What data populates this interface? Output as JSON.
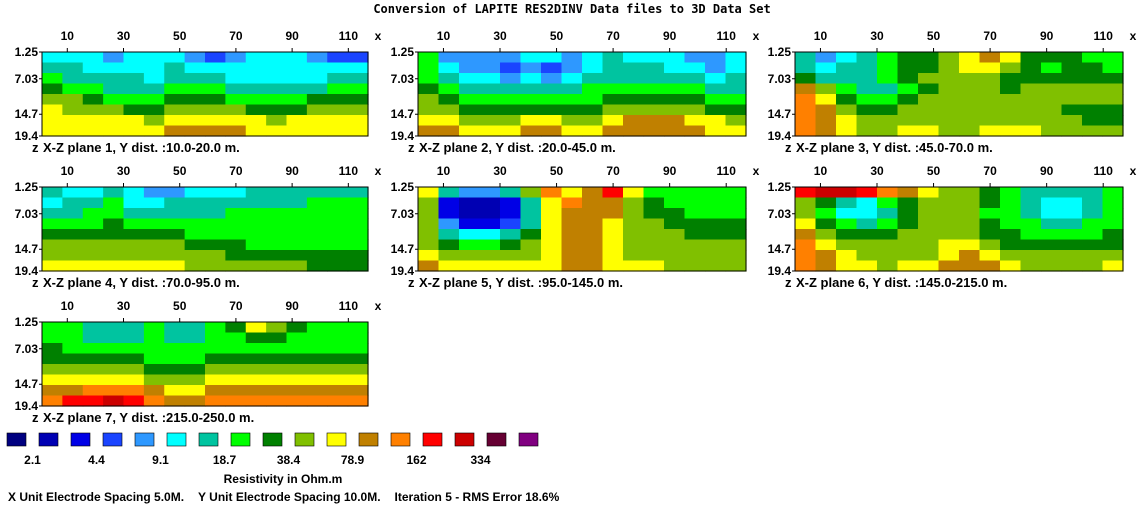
{
  "title": "Conversion of LAPITE RES2DINV Data files to 3D Data Set",
  "chart_data": {
    "type": "heatmap",
    "x_ticks": [
      "10",
      "30",
      "50",
      "70",
      "90",
      "110"
    ],
    "x_tick_values": [
      10,
      30,
      50,
      70,
      90,
      110
    ],
    "x_axis_letter": "x",
    "z_axis_letter": "z",
    "xlim": [
      1,
      117
    ],
    "depth_ticks": [
      "1.25",
      "7.03",
      "14.7",
      "19.4"
    ],
    "depth_tick_values": [
      1.25,
      7.03,
      14.7,
      19.4
    ],
    "zlim": [
      1.25,
      19.4
    ],
    "panels": [
      {
        "caption": "X-Z plane 1, Y dist. :10.0-20.0 m.",
        "grid": [
          [
            5,
            5,
            5,
            4,
            5,
            5,
            5,
            4,
            3,
            4,
            5,
            5,
            5,
            4,
            3,
            3
          ],
          [
            6,
            6,
            5,
            5,
            5,
            5,
            6,
            5,
            5,
            5,
            5,
            5,
            5,
            5,
            5,
            5
          ],
          [
            7,
            6,
            6,
            6,
            6,
            5,
            6,
            6,
            6,
            5,
            5,
            5,
            5,
            5,
            6,
            6
          ],
          [
            8,
            7,
            7,
            6,
            6,
            6,
            7,
            7,
            7,
            6,
            6,
            6,
            6,
            6,
            7,
            7
          ],
          [
            9,
            9,
            8,
            7,
            7,
            7,
            8,
            8,
            8,
            7,
            7,
            7,
            7,
            8,
            8,
            8
          ],
          [
            10,
            9,
            9,
            9,
            8,
            8,
            9,
            9,
            9,
            9,
            8,
            8,
            8,
            9,
            9,
            9
          ],
          [
            10,
            10,
            10,
            10,
            10,
            9,
            10,
            10,
            10,
            10,
            10,
            9,
            10,
            10,
            10,
            10
          ],
          [
            10,
            10,
            10,
            10,
            10,
            10,
            11,
            11,
            11,
            11,
            10,
            10,
            10,
            10,
            10,
            10
          ]
        ]
      },
      {
        "caption": "X-Z plane 2, Y dist. :20.0-45.0 m.",
        "grid": [
          [
            7,
            4,
            4,
            4,
            4,
            5,
            5,
            4,
            5,
            6,
            5,
            5,
            5,
            4,
            4,
            5
          ],
          [
            7,
            5,
            4,
            4,
            3,
            4,
            3,
            4,
            5,
            6,
            6,
            6,
            5,
            5,
            4,
            5
          ],
          [
            7,
            6,
            5,
            5,
            4,
            5,
            4,
            5,
            6,
            6,
            6,
            6,
            6,
            6,
            5,
            6
          ],
          [
            8,
            7,
            6,
            6,
            6,
            6,
            6,
            6,
            7,
            7,
            7,
            7,
            7,
            7,
            6,
            6
          ],
          [
            9,
            8,
            7,
            7,
            7,
            7,
            7,
            7,
            7,
            8,
            8,
            8,
            8,
            8,
            7,
            7
          ],
          [
            9,
            9,
            8,
            8,
            8,
            8,
            8,
            8,
            8,
            9,
            9,
            9,
            9,
            9,
            8,
            8
          ],
          [
            10,
            10,
            9,
            9,
            9,
            10,
            10,
            9,
            9,
            10,
            11,
            11,
            11,
            10,
            10,
            9
          ],
          [
            11,
            11,
            10,
            10,
            10,
            11,
            11,
            10,
            10,
            11,
            11,
            11,
            11,
            11,
            10,
            10
          ]
        ]
      },
      {
        "caption": "X-Z plane 3, Y dist. :45.0-70.0 m.",
        "grid": [
          [
            6,
            4,
            5,
            6,
            7,
            8,
            8,
            9,
            10,
            11,
            10,
            8,
            8,
            8,
            7,
            7
          ],
          [
            6,
            5,
            6,
            6,
            7,
            8,
            8,
            9,
            10,
            10,
            9,
            8,
            7,
            8,
            8,
            7
          ],
          [
            8,
            6,
            6,
            6,
            7,
            8,
            9,
            9,
            9,
            9,
            8,
            8,
            8,
            8,
            8,
            8
          ],
          [
            11,
            9,
            7,
            6,
            6,
            7,
            8,
            9,
            9,
            9,
            8,
            9,
            9,
            9,
            9,
            9
          ],
          [
            12,
            10,
            8,
            7,
            7,
            8,
            9,
            9,
            9,
            9,
            9,
            9,
            9,
            9,
            9,
            9
          ],
          [
            12,
            11,
            9,
            8,
            8,
            9,
            9,
            9,
            9,
            9,
            9,
            9,
            9,
            8,
            8,
            8
          ],
          [
            12,
            11,
            10,
            9,
            9,
            9,
            9,
            9,
            9,
            9,
            9,
            9,
            9,
            9,
            8,
            8
          ],
          [
            12,
            11,
            10,
            9,
            9,
            10,
            10,
            9,
            9,
            10,
            10,
            10,
            9,
            9,
            9,
            9
          ]
        ]
      },
      {
        "caption": "X-Z plane 4, Y dist. :70.0-95.0 m.",
        "grid": [
          [
            6,
            5,
            5,
            6,
            5,
            4,
            4,
            5,
            5,
            5,
            6,
            6,
            6,
            6,
            6,
            6
          ],
          [
            5,
            6,
            6,
            7,
            5,
            5,
            6,
            6,
            6,
            6,
            6,
            6,
            6,
            7,
            7,
            7
          ],
          [
            6,
            6,
            7,
            7,
            6,
            6,
            6,
            6,
            6,
            7,
            7,
            7,
            7,
            7,
            7,
            7
          ],
          [
            7,
            7,
            7,
            8,
            7,
            7,
            7,
            7,
            7,
            7,
            7,
            7,
            7,
            7,
            7,
            7
          ],
          [
            8,
            8,
            8,
            8,
            8,
            8,
            8,
            7,
            7,
            7,
            7,
            7,
            7,
            7,
            7,
            7
          ],
          [
            9,
            9,
            9,
            9,
            9,
            9,
            9,
            8,
            8,
            8,
            7,
            7,
            7,
            7,
            7,
            7
          ],
          [
            9,
            9,
            9,
            9,
            9,
            9,
            9,
            9,
            9,
            8,
            8,
            8,
            8,
            8,
            8,
            8
          ],
          [
            10,
            10,
            10,
            10,
            10,
            10,
            10,
            9,
            9,
            9,
            9,
            9,
            9,
            8,
            8,
            8
          ]
        ]
      },
      {
        "caption": "X-Z plane 5, Y dist. :95.0-145.0 m.",
        "grid": [
          [
            10,
            6,
            4,
            4,
            6,
            9,
            12,
            10,
            11,
            13,
            10,
            7,
            7,
            7,
            7,
            7
          ],
          [
            9,
            2,
            1,
            1,
            2,
            6,
            10,
            12,
            11,
            11,
            9,
            8,
            7,
            7,
            7,
            7
          ],
          [
            9,
            2,
            1,
            1,
            2,
            6,
            10,
            11,
            11,
            11,
            9,
            8,
            8,
            7,
            7,
            7
          ],
          [
            9,
            4,
            2,
            2,
            3,
            6,
            10,
            11,
            11,
            10,
            9,
            9,
            8,
            8,
            8,
            8
          ],
          [
            9,
            6,
            5,
            5,
            6,
            8,
            10,
            11,
            11,
            10,
            9,
            9,
            9,
            8,
            8,
            8
          ],
          [
            9,
            8,
            7,
            7,
            8,
            9,
            10,
            11,
            11,
            10,
            9,
            9,
            9,
            9,
            9,
            9
          ],
          [
            10,
            9,
            9,
            9,
            9,
            9,
            10,
            11,
            11,
            10,
            9,
            9,
            9,
            9,
            9,
            9
          ],
          [
            11,
            10,
            10,
            10,
            10,
            10,
            10,
            11,
            11,
            10,
            10,
            10,
            9,
            9,
            9,
            9
          ]
        ]
      },
      {
        "caption": "X-Z plane 6, Y dist. :145.0-215.0 m.",
        "grid": [
          [
            13,
            14,
            14,
            13,
            12,
            11,
            10,
            9,
            9,
            8,
            7,
            6,
            6,
            6,
            6,
            7
          ],
          [
            9,
            8,
            6,
            5,
            7,
            8,
            9,
            9,
            9,
            8,
            7,
            6,
            5,
            5,
            6,
            7
          ],
          [
            9,
            7,
            5,
            5,
            6,
            8,
            9,
            9,
            9,
            7,
            7,
            6,
            5,
            5,
            6,
            7
          ],
          [
            10,
            8,
            7,
            6,
            7,
            8,
            9,
            9,
            9,
            8,
            7,
            7,
            6,
            6,
            7,
            7
          ],
          [
            11,
            9,
            8,
            8,
            8,
            9,
            9,
            9,
            9,
            8,
            8,
            7,
            7,
            7,
            7,
            8
          ],
          [
            12,
            10,
            9,
            9,
            9,
            9,
            9,
            10,
            10,
            9,
            8,
            8,
            8,
            8,
            8,
            8
          ],
          [
            12,
            11,
            10,
            9,
            9,
            9,
            9,
            10,
            11,
            10,
            9,
            9,
            9,
            9,
            9,
            9
          ],
          [
            12,
            11,
            10,
            10,
            9,
            10,
            10,
            11,
            11,
            11,
            10,
            9,
            9,
            9,
            9,
            10
          ]
        ]
      },
      {
        "caption": "X-Z plane 7, Y dist. :215.0-250.0 m.",
        "grid": [
          [
            7,
            7,
            6,
            6,
            6,
            7,
            6,
            6,
            7,
            8,
            10,
            9,
            8,
            7,
            7,
            7
          ],
          [
            7,
            7,
            6,
            6,
            6,
            7,
            6,
            6,
            7,
            7,
            8,
            8,
            7,
            7,
            7,
            7
          ],
          [
            8,
            7,
            7,
            7,
            7,
            7,
            7,
            7,
            7,
            7,
            7,
            7,
            7,
            7,
            7,
            7
          ],
          [
            8,
            8,
            8,
            8,
            8,
            7,
            7,
            7,
            8,
            8,
            8,
            8,
            8,
            8,
            8,
            8
          ],
          [
            9,
            9,
            9,
            9,
            9,
            8,
            8,
            8,
            9,
            9,
            9,
            9,
            9,
            9,
            9,
            9
          ],
          [
            10,
            10,
            10,
            10,
            10,
            9,
            9,
            9,
            10,
            10,
            10,
            10,
            10,
            10,
            10,
            10
          ],
          [
            11,
            11,
            12,
            12,
            12,
            11,
            10,
            10,
            11,
            11,
            11,
            11,
            11,
            11,
            11,
            11
          ],
          [
            12,
            13,
            13,
            14,
            13,
            12,
            11,
            11,
            12,
            12,
            12,
            12,
            12,
            12,
            12,
            12
          ]
        ]
      }
    ],
    "legend": {
      "title": "Resistivity in Ohm.m",
      "colors": [
        "#000080",
        "#0000b3",
        "#0000e6",
        "#1a44ff",
        "#2e98ff",
        "#00ffff",
        "#00c4a0",
        "#00ff00",
        "#008000",
        "#80c000",
        "#ffff00",
        "#c08000",
        "#ff8000",
        "#ff0000",
        "#cc0000",
        "#660033",
        "#800080"
      ],
      "labels": [
        "2.1",
        "4.4",
        "9.1",
        "18.7",
        "38.4",
        "78.9",
        "162",
        "334"
      ]
    }
  },
  "footer": {
    "x_spacing": "X Unit Electrode Spacing 5.0M.",
    "y_spacing": "Y Unit Electrode Spacing 10.0M.",
    "iteration": "Iteration 5 - RMS Error 18.6%"
  }
}
